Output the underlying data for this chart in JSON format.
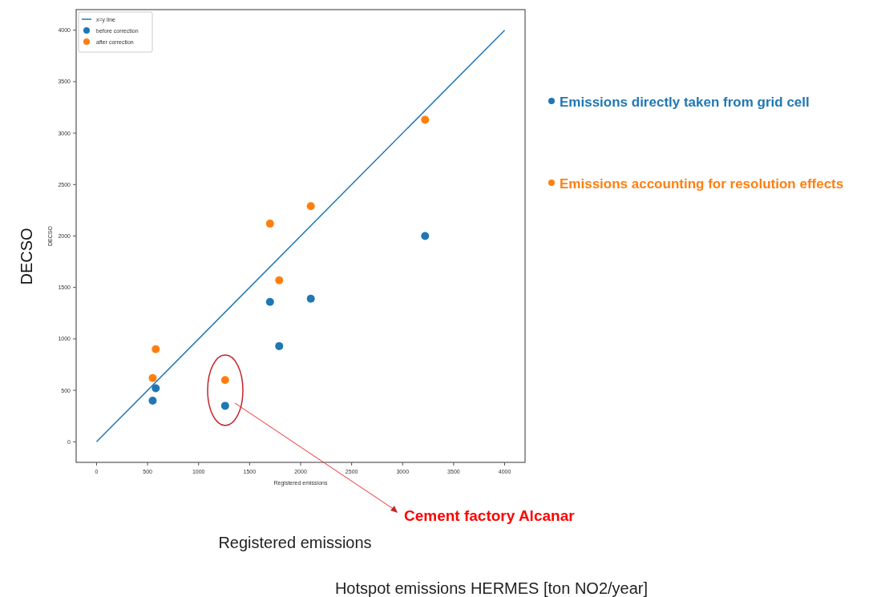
{
  "chart_data": {
    "type": "scatter",
    "xlabel": "Registered emissions",
    "ylabel": "DECSO",
    "xlim": [
      -200,
      4200
    ],
    "ylim": [
      -200,
      4200
    ],
    "xticks": [
      0,
      500,
      1000,
      1500,
      2000,
      2500,
      3000,
      3500,
      4000
    ],
    "yticks": [
      0,
      500,
      1000,
      1500,
      2000,
      2500,
      3000,
      3500,
      4000
    ],
    "grid": false,
    "legend": "top left",
    "series": [
      {
        "name": "x=y line",
        "type": "line",
        "marker": "none",
        "color": "#1f77b4",
        "x": [
          0,
          4000
        ],
        "values": [
          0,
          4000
        ]
      },
      {
        "name": "before correction",
        "marker": "circle",
        "color": "#1f77b4",
        "x": [
          550,
          580,
          1260,
          1700,
          1790,
          2100,
          3220
        ],
        "values": [
          400,
          520,
          350,
          1360,
          930,
          1390,
          2000
        ]
      },
      {
        "name": "after correction",
        "marker": "circle",
        "color": "#ff7f0e",
        "x": [
          550,
          580,
          1260,
          1700,
          1790,
          2100,
          3220
        ],
        "values": [
          620,
          900,
          600,
          2120,
          1570,
          2290,
          3130
        ]
      }
    ],
    "annotations": [
      "DECSO",
      "Registered emissions",
      "Hotspot emissions HERMES [ton NO2/year]",
      "Emissions directly taken from  grid cell",
      "Emissions accounting for resolution effects",
      "Cement factory Alcanar"
    ]
  }
}
